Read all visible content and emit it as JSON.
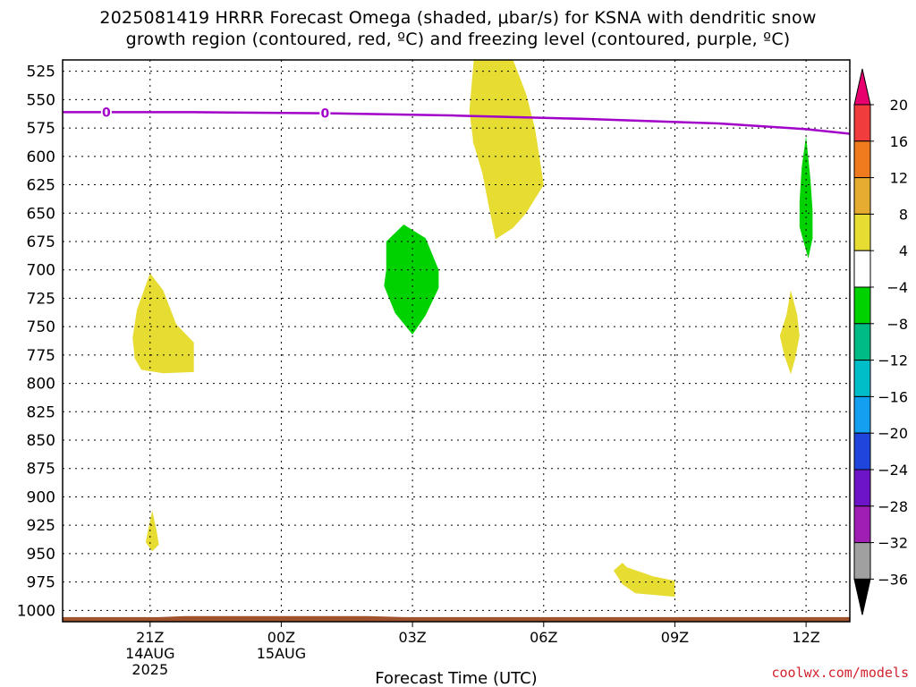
{
  "title": {
    "line1": "2025081419 HRRR Forecast Omega (shaded, μbar/s) for KSNA with dendritic snow",
    "line2": "growth region (contoured, red, ºC) and freezing level (contoured, purple, ºC)"
  },
  "credit": "coolwx.com/models",
  "chart_data": {
    "type": "contour",
    "title": "2025081419 HRRR Forecast Omega (shaded, μbar/s) for KSNA with dendritic snow growth region (contoured, red, ºC) and freezing level (contoured, purple, ºC)",
    "xlabel": "Forecast Time (UTC)",
    "ylabel": "",
    "x_range_hours_from_21Z_14AUG": [
      -2,
      16
    ],
    "y_range_hpa": [
      515,
      1010
    ],
    "grid": true,
    "x_ticks": [
      {
        "hour": 0,
        "label": "21Z",
        "date_line1": "14AUG",
        "date_line2": "2025"
      },
      {
        "hour": 3,
        "label": "00Z",
        "date_line1": "15AUG",
        "date_line2": ""
      },
      {
        "hour": 6,
        "label": "03Z",
        "date_line1": "",
        "date_line2": ""
      },
      {
        "hour": 9,
        "label": "06Z",
        "date_line1": "",
        "date_line2": ""
      },
      {
        "hour": 12,
        "label": "09Z",
        "date_line1": "",
        "date_line2": ""
      },
      {
        "hour": 15,
        "label": "12Z",
        "date_line1": "",
        "date_line2": ""
      }
    ],
    "y_ticks": [
      525,
      550,
      575,
      600,
      625,
      650,
      675,
      700,
      725,
      750,
      775,
      800,
      825,
      850,
      875,
      900,
      925,
      950,
      975,
      1000
    ],
    "freezing_level": {
      "color": "#a000c8",
      "label": "0",
      "label_hours": [
        -1,
        4
      ],
      "points": [
        [
          -2,
          561
        ],
        [
          1,
          561
        ],
        [
          4,
          562
        ],
        [
          7,
          564
        ],
        [
          10,
          567
        ],
        [
          13,
          571
        ],
        [
          15,
          576
        ],
        [
          16,
          580
        ]
      ]
    },
    "terrain": {
      "color": "#a0522d",
      "points": [
        [
          -2,
          1010
        ],
        [
          -2,
          1006
        ],
        [
          0.2,
          1006
        ],
        [
          0.8,
          1005
        ],
        [
          5,
          1005
        ],
        [
          5.8,
          1006
        ],
        [
          16,
          1006
        ],
        [
          16,
          1010
        ]
      ]
    },
    "omega_regions": [
      {
        "level": "4 to 8",
        "color": "#e6dc32",
        "points": [
          [
            -0.4,
            760
          ],
          [
            -0.3,
            735
          ],
          [
            0,
            703
          ],
          [
            0.3,
            718
          ],
          [
            0.6,
            748
          ],
          [
            1.0,
            764
          ],
          [
            1.0,
            790
          ],
          [
            0.3,
            791
          ],
          [
            -0.2,
            788
          ],
          [
            -0.35,
            778
          ]
        ]
      },
      {
        "level": "4 to 8",
        "color": "#e6dc32",
        "points": [
          [
            -0.05,
            930
          ],
          [
            0.05,
            912
          ],
          [
            0.15,
            930
          ],
          [
            0.2,
            942
          ],
          [
            0.05,
            948
          ],
          [
            -0.1,
            940
          ]
        ]
      },
      {
        "level": "-8 to -4",
        "color": "#00d200",
        "points": [
          [
            5.4,
            700
          ],
          [
            5.4,
            675
          ],
          [
            5.8,
            660
          ],
          [
            6.3,
            672
          ],
          [
            6.6,
            700
          ],
          [
            6.6,
            716
          ],
          [
            6.3,
            740
          ],
          [
            6,
            757
          ],
          [
            5.6,
            738
          ],
          [
            5.35,
            714
          ]
        ]
      },
      {
        "level": "4 to 8",
        "color": "#e6dc32",
        "points": [
          [
            7.4,
            590
          ],
          [
            7.3,
            560
          ],
          [
            7.4,
            515
          ],
          [
            8.3,
            515
          ],
          [
            8.6,
            545
          ],
          [
            8.8,
            575
          ],
          [
            8.9,
            600
          ],
          [
            9.0,
            625
          ],
          [
            8.6,
            650
          ],
          [
            8.3,
            663
          ],
          [
            7.9,
            673
          ],
          [
            7.75,
            645
          ],
          [
            7.6,
            615
          ],
          [
            7.3,
            576
          ]
        ]
      },
      {
        "level": "4 to 8",
        "color": "#e6dc32",
        "points": [
          [
            10.6,
            965
          ],
          [
            10.8,
            977
          ],
          [
            11.1,
            985
          ],
          [
            12.0,
            988
          ],
          [
            12.0,
            974
          ],
          [
            11.5,
            970
          ],
          [
            10.9,
            962
          ],
          [
            10.8,
            958
          ]
        ]
      },
      {
        "level": "4 to 8",
        "color": "#e6dc32",
        "points": [
          [
            14.4,
            758
          ],
          [
            14.55,
            740
          ],
          [
            14.65,
            718
          ],
          [
            14.8,
            740
          ],
          [
            14.85,
            758
          ],
          [
            14.75,
            778
          ],
          [
            14.65,
            792
          ],
          [
            14.5,
            775
          ]
        ]
      },
      {
        "level": "-8 to -4",
        "color": "#00d200",
        "points": [
          [
            14.85,
            640
          ],
          [
            14.9,
            610
          ],
          [
            15.0,
            582
          ],
          [
            15.1,
            620
          ],
          [
            15.15,
            648
          ],
          [
            15.15,
            672
          ],
          [
            15.05,
            690
          ],
          [
            14.92,
            672
          ],
          [
            14.85,
            662
          ]
        ]
      }
    ],
    "colorbar": {
      "label_values": [
        "20",
        "16",
        "12",
        "8",
        "4",
        "−4",
        "−8",
        "−12",
        "−16",
        "−20",
        "−24",
        "−28",
        "−32",
        "−36"
      ],
      "colors": [
        "#e8006e",
        "#f03c3c",
        "#f07a1e",
        "#e6ac32",
        "#e6dc32",
        "#ffffff",
        "#00d200",
        "#00bc84",
        "#00bec8",
        "#14a0f0",
        "#1e46dc",
        "#6e14c8",
        "#a01eb4",
        "#a0a0a0",
        "#000000"
      ]
    }
  }
}
